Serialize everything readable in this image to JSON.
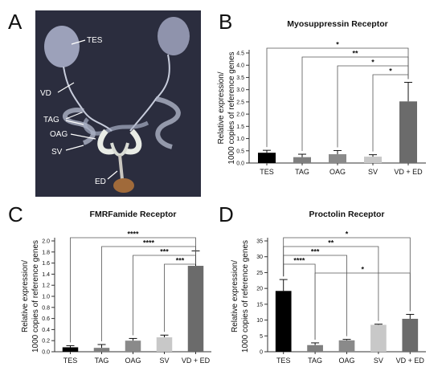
{
  "panel_letters": [
    "A",
    "B",
    "C",
    "D"
  ],
  "photo": {
    "labels": [
      "TES",
      "VD",
      "TAG",
      "OAG",
      "SV",
      "ED"
    ]
  },
  "colors": {
    "TES": "#000000",
    "TAG": "#7f7f7f",
    "OAG": "#8a8a8a",
    "SV": "#c8c8c8",
    "VD + ED": "#6b6b6b",
    "photo_bg": "#2b2d3e"
  },
  "chart_data": [
    {
      "panel": "B",
      "type": "bar",
      "title": "Myosuppressin Receptor",
      "ylabel": [
        "Relative expression/",
        "1000 copies of reference genes"
      ],
      "categories": [
        "TES",
        "TAG",
        "OAG",
        "SV",
        "VD + ED"
      ],
      "values": [
        0.42,
        0.24,
        0.36,
        0.26,
        2.52
      ],
      "errors": [
        0.1,
        0.12,
        0.15,
        0.08,
        0.78
      ],
      "ylim": [
        0,
        4.5
      ],
      "yticks": [
        "0.0",
        "0.5",
        "1.0",
        "1.5",
        "2.0",
        "2.5",
        "3.0",
        "3.5",
        "4.0",
        "4.5"
      ],
      "significance": [
        {
          "from": "TES",
          "to": "VD + ED",
          "label": "*"
        },
        {
          "from": "TAG",
          "to": "VD + ED",
          "label": "**"
        },
        {
          "from": "OAG",
          "to": "VD + ED",
          "label": "*"
        },
        {
          "from": "SV",
          "to": "VD + ED",
          "label": "*"
        }
      ]
    },
    {
      "panel": "C",
      "type": "bar",
      "title": "FMRFamide Receptor",
      "ylabel": [
        "Relative expression/",
        "1000 copies of reference genes"
      ],
      "categories": [
        "TES",
        "TAG",
        "OAG",
        "SV",
        "VD + ED"
      ],
      "values": [
        0.08,
        0.07,
        0.2,
        0.26,
        1.55
      ],
      "errors": [
        0.03,
        0.06,
        0.04,
        0.04,
        0.27
      ],
      "ylim": [
        0,
        2.0
      ],
      "yticks": [
        "0.0",
        "0.2",
        "0.4",
        "0.6",
        "0.8",
        "1.0",
        "1.2",
        "1.4",
        "1.6",
        "1.8",
        "2.0"
      ],
      "significance": [
        {
          "from": "TES",
          "to": "VD + ED",
          "label": "****"
        },
        {
          "from": "TAG",
          "to": "VD + ED",
          "label": "****"
        },
        {
          "from": "OAG",
          "to": "VD + ED",
          "label": "***"
        },
        {
          "from": "SV",
          "to": "VD + ED",
          "label": "***"
        }
      ]
    },
    {
      "panel": "D",
      "type": "bar",
      "title": "Proctolin Receptor",
      "ylabel": [
        "Relative expression/",
        "1000 copies of reference genes"
      ],
      "categories": [
        "TES",
        "TAG",
        "OAG",
        "SV",
        "VD + ED"
      ],
      "values": [
        19.2,
        2.1,
        3.6,
        8.5,
        10.4
      ],
      "errors": [
        3.6,
        0.7,
        0.3,
        0.2,
        1.4
      ],
      "ylim": [
        0,
        35
      ],
      "yticks": [
        "0",
        "5",
        "10",
        "15",
        "20",
        "25",
        "30",
        "35"
      ],
      "significance": [
        {
          "from": "TES",
          "to": "VD + ED",
          "label": "*"
        },
        {
          "from": "TES",
          "to": "SV",
          "label": "**"
        },
        {
          "from": "TES",
          "to": "OAG",
          "label": "***"
        },
        {
          "from": "TES",
          "to": "TAG",
          "label": "****"
        },
        {
          "from": "TAG",
          "to": "VD + ED",
          "label": "*"
        }
      ]
    }
  ]
}
